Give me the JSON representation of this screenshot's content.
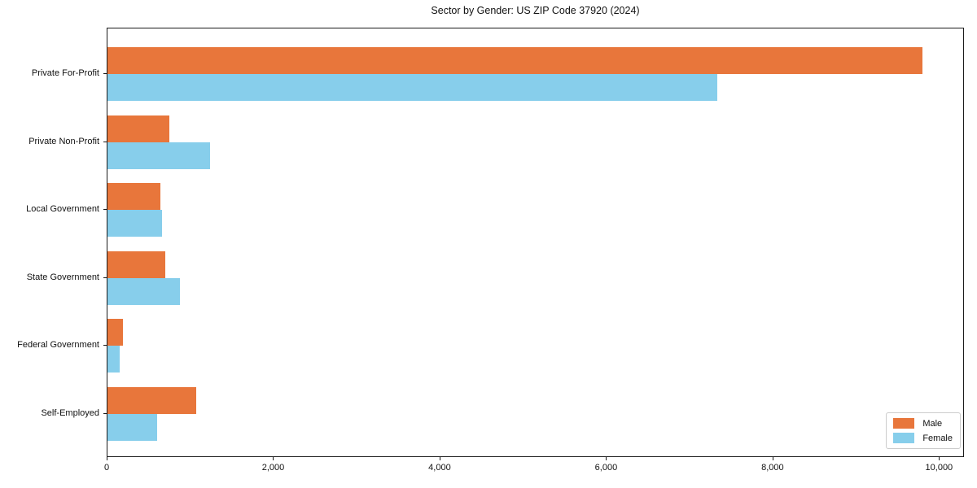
{
  "figure": {
    "background": "#ffffff",
    "spine_color": "#1a1a1a"
  },
  "chart_data": {
    "type": "bar",
    "orientation": "horizontal",
    "title": "Sector by Gender: US ZIP Code 37920 (2024)",
    "xlabel": "",
    "ylabel": "",
    "categories": [
      "Private For-Profit",
      "Private Non-Profit",
      "Local Government",
      "State Government",
      "Federal Government",
      "Self-Employed"
    ],
    "series": [
      {
        "name": "Male",
        "color": "#e8763b",
        "values": [
          9790,
          745,
          640,
          695,
          185,
          1065
        ]
      },
      {
        "name": "Female",
        "color": "#87ceeb",
        "values": [
          7330,
          1235,
          655,
          870,
          150,
          595
        ]
      }
    ],
    "xlim": [
      0,
      10280
    ],
    "x_ticks": [
      {
        "value": 0,
        "label": "0"
      },
      {
        "value": 2000,
        "label": "2,000"
      },
      {
        "value": 4000,
        "label": "4,000"
      },
      {
        "value": 6000,
        "label": "6,000"
      },
      {
        "value": 8000,
        "label": "8,000"
      },
      {
        "value": 10000,
        "label": "10,000"
      }
    ],
    "grid": false,
    "legend": {
      "position": "lower right",
      "entries": [
        "Male",
        "Female"
      ]
    }
  }
}
